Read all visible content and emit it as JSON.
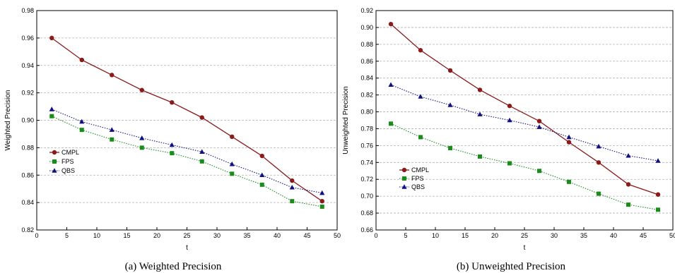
{
  "chart_data": [
    {
      "type": "line",
      "caption": "(a) Weighted Precision",
      "xlabel": "t",
      "ylabel": "Weighted Precision",
      "xlim": [
        0,
        50
      ],
      "ylim": [
        0.82,
        0.98
      ],
      "xticks": [
        0,
        5,
        10,
        15,
        20,
        25,
        30,
        35,
        40,
        45,
        50
      ],
      "yticks": [
        0.82,
        0.84,
        0.86,
        0.88,
        0.9,
        0.92,
        0.94,
        0.96,
        0.98
      ],
      "ytick_labels": [
        "0.82",
        "0.84",
        "0.86",
        "0.88",
        "0.90",
        "0.92",
        "0.94",
        "0.96",
        "0.98"
      ],
      "grid": "horizontal dashed",
      "legend": "left",
      "x": [
        2.5,
        7.5,
        12.5,
        17.5,
        22.5,
        27.5,
        32.5,
        37.5,
        42.5,
        47.5
      ],
      "series": [
        {
          "name": "CMPL",
          "color": "#8b1a1a",
          "marker": "circle",
          "style": "solid",
          "values": [
            0.96,
            0.944,
            0.933,
            0.922,
            0.913,
            0.902,
            0.888,
            0.874,
            0.856,
            0.841
          ]
        },
        {
          "name": "FPS",
          "color": "#1a8c1a",
          "marker": "square",
          "style": "dotted",
          "values": [
            0.903,
            0.893,
            0.886,
            0.88,
            0.876,
            0.87,
            0.861,
            0.853,
            0.841,
            0.837
          ]
        },
        {
          "name": "QBS",
          "color": "#101080",
          "marker": "triangle",
          "style": "dotted",
          "values": [
            0.908,
            0.899,
            0.893,
            0.887,
            0.882,
            0.877,
            0.868,
            0.86,
            0.851,
            0.847
          ]
        }
      ]
    },
    {
      "type": "line",
      "caption": "(b) Unweighted Precision",
      "xlabel": "t",
      "ylabel": "Unweighted Precision",
      "xlim": [
        0,
        50
      ],
      "ylim": [
        0.66,
        0.92
      ],
      "xticks": [
        0,
        5,
        10,
        15,
        20,
        25,
        30,
        35,
        40,
        45,
        50
      ],
      "yticks": [
        0.66,
        0.68,
        0.7,
        0.72,
        0.74,
        0.76,
        0.78,
        0.8,
        0.82,
        0.84,
        0.86,
        0.88,
        0.9,
        0.92
      ],
      "ytick_labels": [
        "0.66",
        "0.68",
        "0.70",
        "0.72",
        "0.74",
        "0.76",
        "0.78",
        "0.80",
        "0.82",
        "0.84",
        "0.86",
        "0.88",
        "0.90",
        "0.92"
      ],
      "grid": "horizontal dashed",
      "legend": "left",
      "x": [
        2.5,
        7.5,
        12.5,
        17.5,
        22.5,
        27.5,
        32.5,
        37.5,
        42.5,
        47.5
      ],
      "series": [
        {
          "name": "CMPL",
          "color": "#8b1a1a",
          "marker": "circle",
          "style": "solid",
          "values": [
            0.904,
            0.873,
            0.849,
            0.826,
            0.807,
            0.789,
            0.764,
            0.74,
            0.714,
            0.702
          ]
        },
        {
          "name": "FPS",
          "color": "#1a8c1a",
          "marker": "square",
          "style": "dotted",
          "values": [
            0.786,
            0.77,
            0.757,
            0.747,
            0.739,
            0.73,
            0.717,
            0.703,
            0.69,
            0.684
          ]
        },
        {
          "name": "QBS",
          "color": "#101080",
          "marker": "triangle",
          "style": "dotted",
          "values": [
            0.832,
            0.818,
            0.808,
            0.797,
            0.79,
            0.782,
            0.77,
            0.759,
            0.748,
            0.742
          ]
        }
      ]
    }
  ]
}
